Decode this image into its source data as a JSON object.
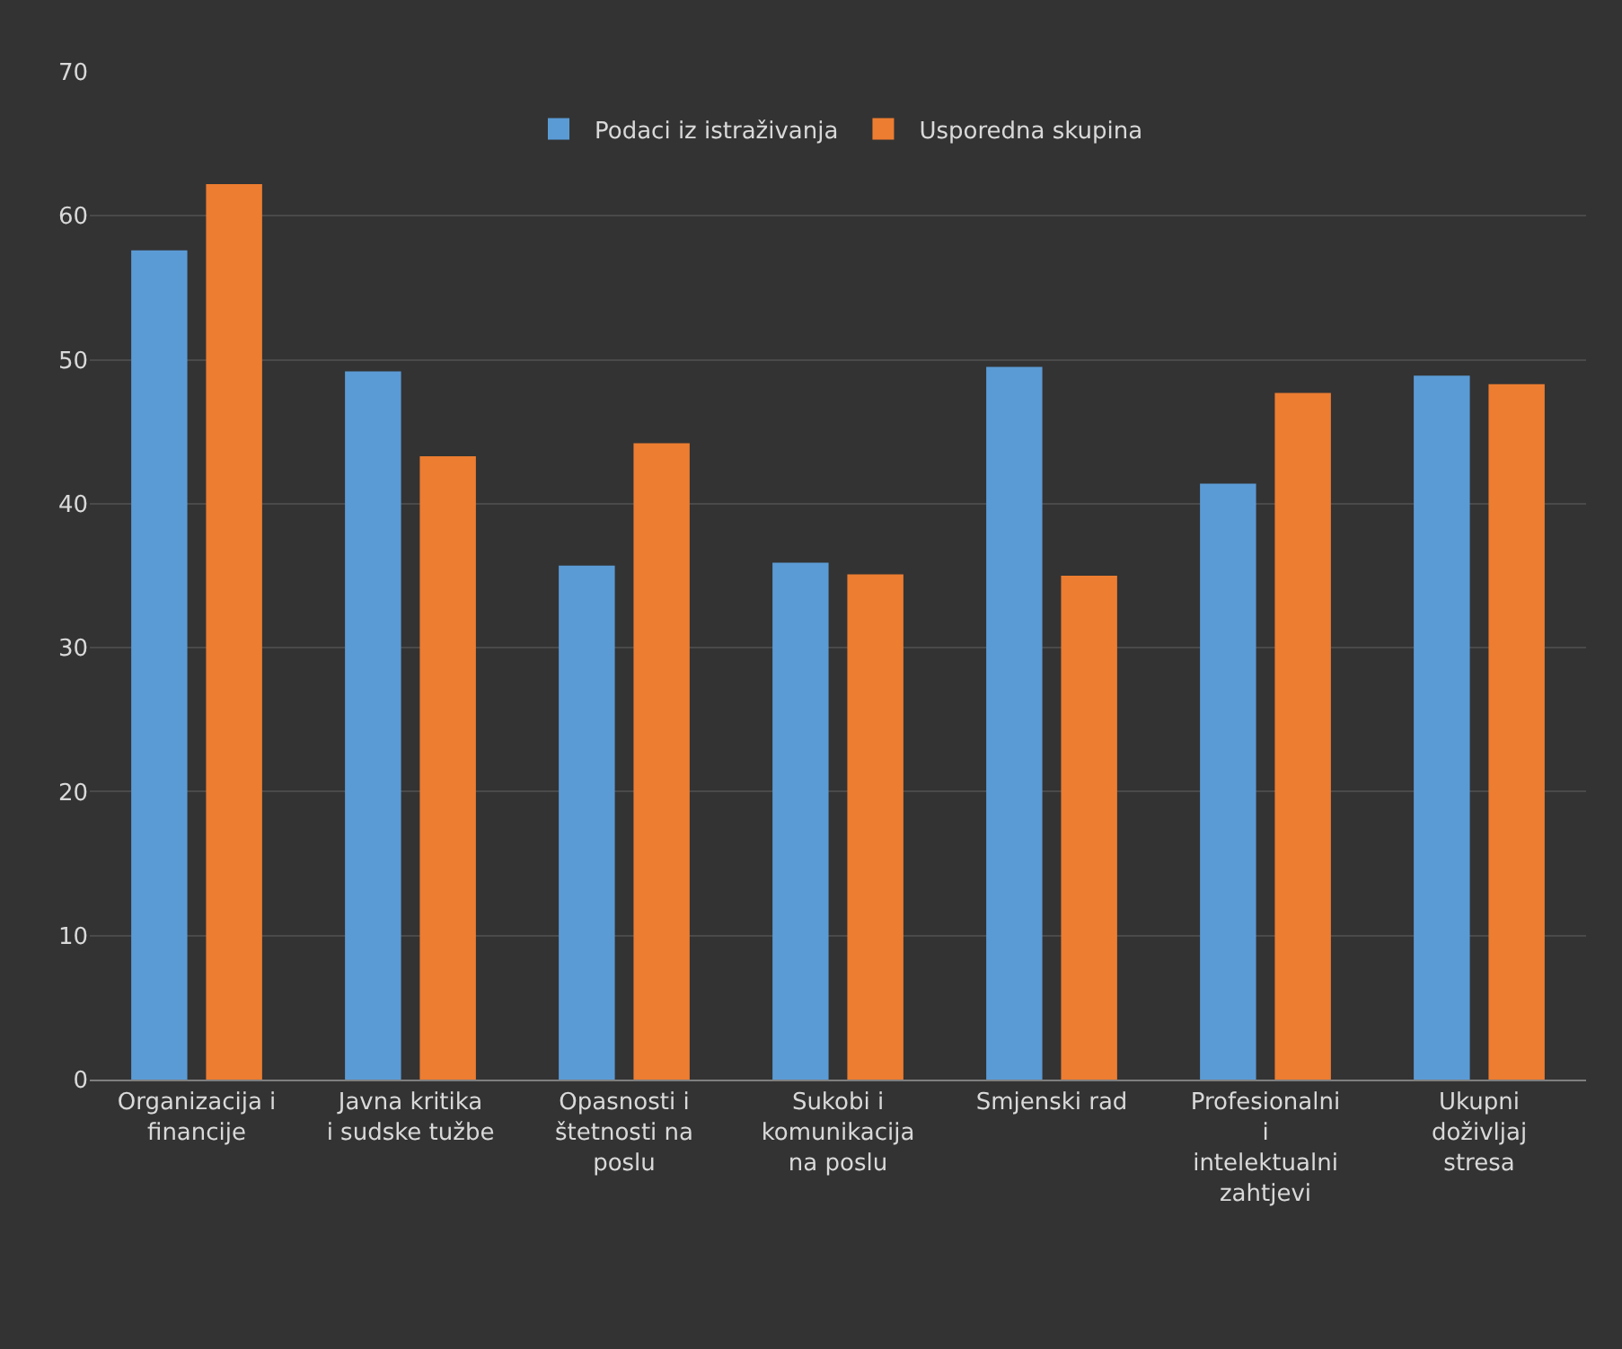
{
  "chart_data": {
    "type": "bar",
    "categories": [
      "Organizacija i financije",
      "Javna kritika i sudske tužbe",
      "Opasnosti i štetnosti na poslu",
      "Sukobi i komunikacija na poslu",
      "Smjenski rad",
      "Profesionalni i intelektualni zahtjevi",
      "Ukupni doživljaj stresa"
    ],
    "series": [
      {
        "name": "Podaci iz istraživanja",
        "color": "#5b9bd5",
        "values": [
          57.6,
          49.2,
          35.7,
          35.9,
          49.5,
          41.4,
          48.9
        ]
      },
      {
        "name": "Usporedna skupina",
        "color": "#ed7d31",
        "values": [
          62.2,
          43.3,
          44.2,
          35.1,
          35.0,
          47.7,
          48.3
        ]
      }
    ],
    "ylim": [
      0,
      70
    ],
    "yticks": [
      0,
      10,
      20,
      30,
      40,
      50,
      60,
      70
    ],
    "grid": "y",
    "legend": "top"
  }
}
